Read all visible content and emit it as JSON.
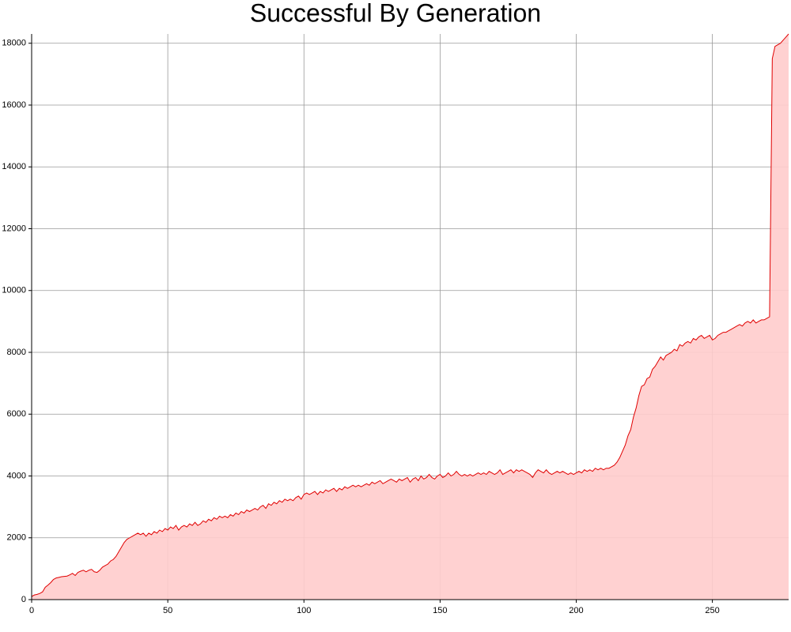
{
  "chart_data": {
    "type": "area",
    "title": "Successful By Generation",
    "x": [
      0,
      1,
      2,
      3,
      4,
      5,
      6,
      7,
      8,
      9,
      10,
      11,
      12,
      13,
      14,
      15,
      16,
      17,
      18,
      19,
      20,
      21,
      22,
      23,
      24,
      25,
      26,
      27,
      28,
      29,
      30,
      31,
      32,
      33,
      34,
      35,
      36,
      37,
      38,
      39,
      40,
      41,
      42,
      43,
      44,
      45,
      46,
      47,
      48,
      49,
      50,
      51,
      52,
      53,
      54,
      55,
      56,
      57,
      58,
      59,
      60,
      61,
      62,
      63,
      64,
      65,
      66,
      67,
      68,
      69,
      70,
      71,
      72,
      73,
      74,
      75,
      76,
      77,
      78,
      79,
      80,
      81,
      82,
      83,
      84,
      85,
      86,
      87,
      88,
      89,
      90,
      91,
      92,
      93,
      94,
      95,
      96,
      97,
      98,
      99,
      100,
      101,
      102,
      103,
      104,
      105,
      106,
      107,
      108,
      109,
      110,
      111,
      112,
      113,
      114,
      115,
      116,
      117,
      118,
      119,
      120,
      121,
      122,
      123,
      124,
      125,
      126,
      127,
      128,
      129,
      130,
      131,
      132,
      133,
      134,
      135,
      136,
      137,
      138,
      139,
      140,
      141,
      142,
      143,
      144,
      145,
      146,
      147,
      148,
      149,
      150,
      151,
      152,
      153,
      154,
      155,
      156,
      157,
      158,
      159,
      160,
      161,
      162,
      163,
      164,
      165,
      166,
      167,
      168,
      169,
      170,
      171,
      172,
      173,
      174,
      175,
      176,
      177,
      178,
      179,
      180,
      181,
      182,
      183,
      184,
      185,
      186,
      187,
      188,
      189,
      190,
      191,
      192,
      193,
      194,
      195,
      196,
      197,
      198,
      199,
      200,
      201,
      202,
      203,
      204,
      205,
      206,
      207,
      208,
      209,
      210,
      211,
      212,
      213,
      214,
      215,
      216,
      217,
      218,
      219,
      220,
      221,
      222,
      223,
      224,
      225,
      226,
      227,
      228,
      229,
      230,
      231,
      232,
      233,
      234,
      235,
      236,
      237,
      238,
      239,
      240,
      241,
      242,
      243,
      244,
      245,
      246,
      247,
      248,
      249,
      250,
      251,
      252,
      253,
      254,
      255,
      256,
      257,
      258,
      259,
      260,
      261,
      262,
      263,
      264,
      265,
      266,
      267,
      268,
      269,
      270,
      271,
      272,
      273,
      274,
      275,
      276,
      277,
      278
    ],
    "values": [
      100,
      150,
      170,
      200,
      250,
      400,
      470,
      550,
      650,
      700,
      720,
      740,
      750,
      760,
      800,
      850,
      780,
      880,
      920,
      950,
      900,
      950,
      980,
      900,
      880,
      950,
      1050,
      1100,
      1150,
      1250,
      1300,
      1400,
      1550,
      1700,
      1850,
      1950,
      2000,
      2050,
      2100,
      2150,
      2100,
      2150,
      2050,
      2150,
      2100,
      2200,
      2150,
      2250,
      2200,
      2300,
      2250,
      2350,
      2300,
      2400,
      2250,
      2350,
      2400,
      2350,
      2450,
      2400,
      2500,
      2400,
      2450,
      2550,
      2500,
      2600,
      2550,
      2650,
      2600,
      2700,
      2650,
      2700,
      2650,
      2750,
      2700,
      2800,
      2750,
      2850,
      2800,
      2900,
      2850,
      2900,
      2950,
      2900,
      3000,
      3050,
      2950,
      3100,
      3050,
      3150,
      3100,
      3200,
      3150,
      3250,
      3200,
      3250,
      3200,
      3300,
      3350,
      3250,
      3400,
      3450,
      3400,
      3450,
      3500,
      3400,
      3500,
      3450,
      3550,
      3500,
      3550,
      3600,
      3500,
      3600,
      3550,
      3650,
      3600,
      3650,
      3700,
      3650,
      3700,
      3650,
      3700,
      3750,
      3700,
      3800,
      3750,
      3800,
      3850,
      3750,
      3800,
      3850,
      3900,
      3850,
      3800,
      3900,
      3850,
      3900,
      3950,
      3800,
      3900,
      3950,
      3850,
      4000,
      3900,
      3950,
      4050,
      3950,
      3900,
      4000,
      4050,
      3950,
      4000,
      4100,
      4000,
      4050,
      4150,
      4050,
      4000,
      4050,
      4000,
      4050,
      4000,
      4050,
      4100,
      4050,
      4100,
      4050,
      4150,
      4100,
      4050,
      4100,
      4200,
      4050,
      4100,
      4150,
      4200,
      4100,
      4200,
      4150,
      4200,
      4150,
      4100,
      4050,
      3950,
      4100,
      4200,
      4150,
      4100,
      4200,
      4100,
      4050,
      4100,
      4150,
      4100,
      4150,
      4100,
      4050,
      4100,
      4050,
      4100,
      4150,
      4100,
      4200,
      4150,
      4200,
      4150,
      4250,
      4200,
      4250,
      4200,
      4250,
      4250,
      4300,
      4350,
      4450,
      4600,
      4800,
      5000,
      5300,
      5500,
      5900,
      6200,
      6600,
      6900,
      6950,
      7150,
      7200,
      7450,
      7550,
      7700,
      7850,
      7750,
      7900,
      7950,
      8000,
      8100,
      8050,
      8250,
      8200,
      8300,
      8350,
      8300,
      8450,
      8400,
      8500,
      8550,
      8450,
      8500,
      8550,
      8400,
      8450,
      8550,
      8600,
      8650,
      8650,
      8700,
      8750,
      8800,
      8850,
      8900,
      8850,
      8950,
      9000,
      8950,
      9050,
      8950,
      9000,
      9050,
      9050,
      9100,
      9150,
      17500,
      17900,
      17950,
      18000,
      18100,
      18200,
      18300
    ],
    "color": "#e00000",
    "fill": "#ffcccc",
    "xlim": [
      0,
      278
    ],
    "ylim": [
      0,
      18300
    ],
    "xticks": [
      0,
      50,
      100,
      150,
      200,
      250
    ],
    "yticks": [
      0,
      2000,
      4000,
      6000,
      8000,
      10000,
      12000,
      14000,
      16000,
      18000
    ],
    "grid": true
  }
}
